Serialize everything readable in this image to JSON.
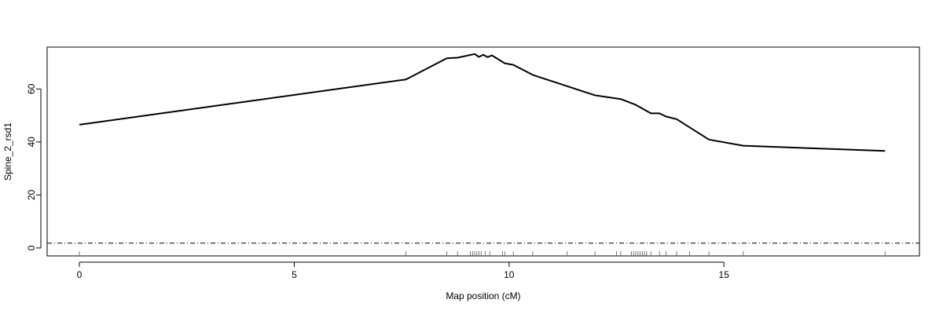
{
  "chart_data": {
    "type": "line",
    "title": "",
    "xlabel": "Map position (cM)",
    "ylabel": "Spine_2_rsd1",
    "xlim": [
      -0.75,
      19.55
    ],
    "ylim": [
      -3.0,
      75.8
    ],
    "xticks": [
      0,
      5,
      10,
      15
    ],
    "yticks": [
      0,
      20,
      40,
      60
    ],
    "grid": false,
    "series": [
      {
        "values": [
          {
            "x": 0.0,
            "y": 46.5
          },
          {
            "x": 7.6,
            "y": 63.6
          },
          {
            "x": 8.55,
            "y": 71.6
          },
          {
            "x": 8.8,
            "y": 71.8
          },
          {
            "x": 9.2,
            "y": 73.2
          },
          {
            "x": 9.3,
            "y": 72.1
          },
          {
            "x": 9.4,
            "y": 72.9
          },
          {
            "x": 9.5,
            "y": 72.0
          },
          {
            "x": 9.6,
            "y": 72.7
          },
          {
            "x": 9.9,
            "y": 69.7
          },
          {
            "x": 10.1,
            "y": 69.1
          },
          {
            "x": 10.55,
            "y": 65.3
          },
          {
            "x": 12.0,
            "y": 57.6
          },
          {
            "x": 12.6,
            "y": 56.2
          },
          {
            "x": 12.95,
            "y": 54.0
          },
          {
            "x": 13.3,
            "y": 50.8
          },
          {
            "x": 13.5,
            "y": 50.8
          },
          {
            "x": 13.65,
            "y": 49.6
          },
          {
            "x": 13.9,
            "y": 48.6
          },
          {
            "x": 14.65,
            "y": 40.9
          },
          {
            "x": 15.45,
            "y": 38.6
          },
          {
            "x": 18.75,
            "y": 36.6
          }
        ]
      }
    ],
    "threshold": 1.8,
    "markers": [
      0.0,
      7.6,
      8.55,
      8.8,
      9.1,
      9.15,
      9.2,
      9.25,
      9.3,
      9.35,
      9.45,
      9.55,
      9.85,
      9.9,
      10.1,
      10.55,
      11.35,
      12.0,
      12.5,
      12.6,
      12.85,
      12.9,
      12.95,
      13.0,
      13.05,
      13.1,
      13.15,
      13.2,
      13.3,
      13.5,
      13.65,
      13.9,
      14.2,
      14.65,
      15.45,
      18.75
    ]
  }
}
